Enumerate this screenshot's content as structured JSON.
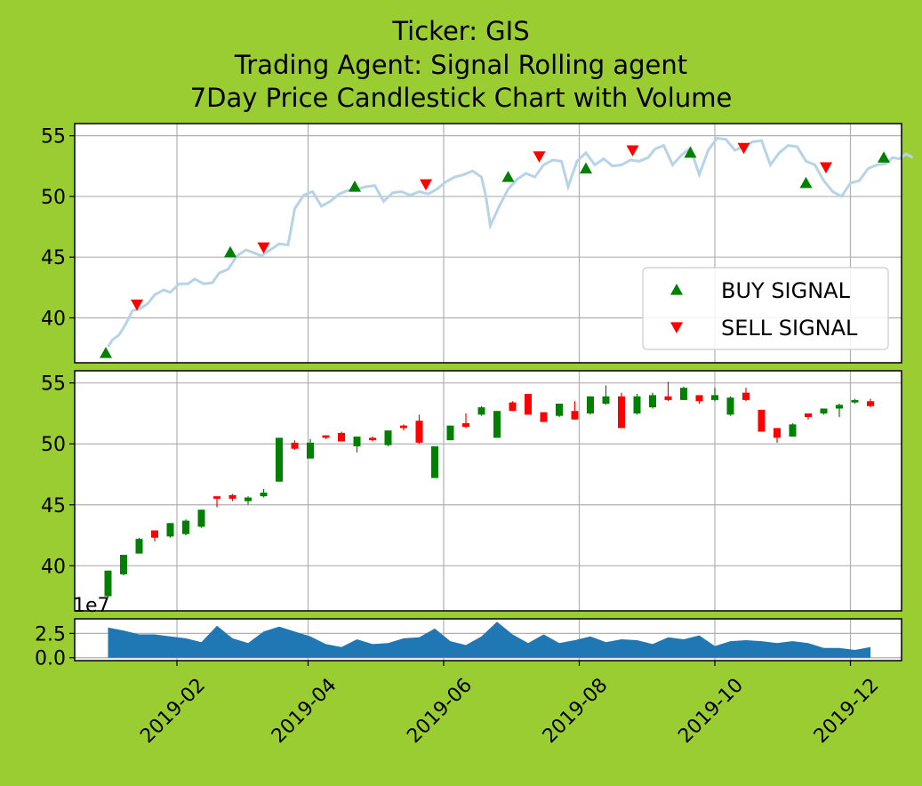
{
  "title": {
    "line1": "Ticker: GIS",
    "line2": "Trading Agent: Signal Rolling agent",
    "line3": "7Day Price Candlestick Chart with Volume"
  },
  "colors": {
    "background": "#9acd32",
    "price_line": "#b7d3e8",
    "buy": "#008000",
    "sell": "#ff0000",
    "candle_up": "#008000",
    "candle_down": "#ff0000",
    "volume": "#1f77b4",
    "grid": "#b0b0b0"
  },
  "chart_data": [
    {
      "type": "line",
      "panel": "price",
      "ylim": [
        36.3,
        56
      ],
      "yticks": [
        40,
        45,
        50,
        55
      ],
      "xlim": [
        "2018-12-17",
        "2019-12-24"
      ],
      "grid": true,
      "legend": {
        "placement": "lower-right",
        "entries": [
          {
            "label": "BUY SIGNAL",
            "marker": "triangle-up",
            "color": "#008000"
          },
          {
            "label": "SELL SIGNAL",
            "marker": "triangle-down",
            "color": "#ff0000"
          }
        ]
      },
      "price_series": [
        [
          "2019-01-01",
          37.6
        ],
        [
          "2019-01-03",
          38.2
        ],
        [
          "2019-01-06",
          38.6
        ],
        [
          "2019-01-09",
          39.5
        ],
        [
          "2019-01-12",
          40.6
        ],
        [
          "2019-01-15",
          40.7
        ],
        [
          "2019-01-19",
          41.2
        ],
        [
          "2019-01-22",
          41.9
        ],
        [
          "2019-01-26",
          42.3
        ],
        [
          "2019-01-29",
          42.1
        ],
        [
          "2019-02-02",
          42.8
        ],
        [
          "2019-02-06",
          42.8
        ],
        [
          "2019-02-09",
          43.2
        ],
        [
          "2019-02-13",
          42.8
        ],
        [
          "2019-02-17",
          42.9
        ],
        [
          "2019-02-20",
          43.7
        ],
        [
          "2019-02-24",
          44.0
        ],
        [
          "2019-02-28",
          45.1
        ],
        [
          "2019-03-04",
          45.6
        ],
        [
          "2019-03-07",
          45.4
        ],
        [
          "2019-03-11",
          45.1
        ],
        [
          "2019-03-15",
          45.6
        ],
        [
          "2019-03-19",
          46.1
        ],
        [
          "2019-03-23",
          46.0
        ],
        [
          "2019-03-26",
          49.0
        ],
        [
          "2019-03-30",
          50.1
        ],
        [
          "2019-04-03",
          50.4
        ],
        [
          "2019-04-07",
          49.2
        ],
        [
          "2019-04-11",
          49.6
        ],
        [
          "2019-04-15",
          50.2
        ],
        [
          "2019-04-19",
          50.5
        ],
        [
          "2019-04-23",
          50.6
        ],
        [
          "2019-04-27",
          50.8
        ],
        [
          "2019-05-01",
          50.9
        ],
        [
          "2019-05-05",
          49.6
        ],
        [
          "2019-05-09",
          50.3
        ],
        [
          "2019-05-13",
          50.4
        ],
        [
          "2019-05-17",
          50.1
        ],
        [
          "2019-05-21",
          50.4
        ],
        [
          "2019-05-25",
          50.2
        ],
        [
          "2019-05-29",
          50.6
        ],
        [
          "2019-06-02",
          51.2
        ],
        [
          "2019-06-06",
          51.6
        ],
        [
          "2019-06-10",
          51.8
        ],
        [
          "2019-06-14",
          52.1
        ],
        [
          "2019-06-18",
          51.6
        ],
        [
          "2019-06-20",
          50.0
        ],
        [
          "2019-06-22",
          47.6
        ],
        [
          "2019-06-26",
          49.2
        ],
        [
          "2019-06-30",
          50.6
        ],
        [
          "2019-07-04",
          51.4
        ],
        [
          "2019-07-08",
          51.9
        ],
        [
          "2019-07-12",
          51.6
        ],
        [
          "2019-07-16",
          52.6
        ],
        [
          "2019-07-20",
          53.0
        ],
        [
          "2019-07-24",
          52.9
        ],
        [
          "2019-07-27",
          50.8
        ],
        [
          "2019-07-31",
          52.9
        ],
        [
          "2019-08-04",
          53.6
        ],
        [
          "2019-08-08",
          52.6
        ],
        [
          "2019-08-12",
          53.1
        ],
        [
          "2019-08-16",
          52.5
        ],
        [
          "2019-08-20",
          52.6
        ],
        [
          "2019-08-24",
          53.0
        ],
        [
          "2019-08-28",
          52.9
        ],
        [
          "2019-09-01",
          53.2
        ],
        [
          "2019-09-04",
          53.9
        ],
        [
          "2019-09-08",
          54.2
        ],
        [
          "2019-09-12",
          52.6
        ],
        [
          "2019-09-16",
          53.4
        ],
        [
          "2019-09-20",
          54.0
        ],
        [
          "2019-09-24",
          51.8
        ],
        [
          "2019-09-28",
          53.8
        ],
        [
          "2019-10-02",
          54.8
        ],
        [
          "2019-10-06",
          54.7
        ],
        [
          "2019-10-10",
          53.8
        ],
        [
          "2019-10-14",
          54.1
        ],
        [
          "2019-10-18",
          54.5
        ],
        [
          "2019-10-22",
          54.6
        ],
        [
          "2019-10-26",
          52.6
        ],
        [
          "2019-10-30",
          53.6
        ],
        [
          "2019-11-03",
          54.2
        ],
        [
          "2019-11-07",
          54.1
        ],
        [
          "2019-11-11",
          52.9
        ],
        [
          "2019-11-15",
          52.6
        ],
        [
          "2019-11-19",
          51.3
        ],
        [
          "2019-11-23",
          50.4
        ],
        [
          "2019-11-27",
          50.0
        ],
        [
          "2019-12-01",
          51.1
        ],
        [
          "2019-12-05",
          51.3
        ],
        [
          "2019-12-09",
          52.3
        ],
        [
          "2019-12-13",
          52.6
        ],
        [
          "2019-12-17",
          52.7
        ],
        [
          "2019-12-20",
          53.2
        ],
        [
          "2019-12-23",
          53.1
        ],
        [
          "2019-12-26",
          53.5
        ],
        [
          "2019-12-29",
          53.2
        ]
      ],
      "buy_signals": [
        [
          "2018-12-31",
          37.1
        ],
        [
          "2019-02-25",
          45.4
        ],
        [
          "2019-04-22",
          50.8
        ],
        [
          "2019-06-30",
          51.6
        ],
        [
          "2019-08-04",
          52.3
        ],
        [
          "2019-09-20",
          53.6
        ],
        [
          "2019-11-11",
          51.1
        ],
        [
          "2019-12-16",
          53.2
        ]
      ],
      "sell_signals": [
        [
          "2019-01-14",
          41.1
        ],
        [
          "2019-03-12",
          45.8
        ],
        [
          "2019-05-24",
          51.0
        ],
        [
          "2019-07-14",
          53.3
        ],
        [
          "2019-08-25",
          53.8
        ],
        [
          "2019-10-14",
          54.0
        ],
        [
          "2019-11-20",
          52.4
        ]
      ]
    },
    {
      "type": "candlestick",
      "panel": "candles",
      "ylim": [
        36.3,
        56
      ],
      "yticks": [
        40,
        45,
        50,
        55
      ],
      "grid": true,
      "candles": [
        [
          "2019-01-01",
          37.5,
          39.6,
          37.4,
          39.6
        ],
        [
          "2019-01-08",
          39.3,
          40.9,
          39.2,
          40.9
        ],
        [
          "2019-01-15",
          41.0,
          42.2,
          41.0,
          42.3
        ],
        [
          "2019-01-22",
          42.9,
          42.3,
          42.0,
          42.9
        ],
        [
          "2019-01-29",
          42.4,
          43.5,
          42.3,
          43.5
        ],
        [
          "2019-02-05",
          42.6,
          43.7,
          42.5,
          43.8
        ],
        [
          "2019-02-12",
          43.2,
          44.6,
          43.1,
          44.6
        ],
        [
          "2019-02-19",
          45.7,
          45.5,
          44.8,
          45.7
        ],
        [
          "2019-02-26",
          45.8,
          45.5,
          45.3,
          45.9
        ],
        [
          "2019-03-05",
          45.3,
          45.6,
          45.0,
          45.7
        ],
        [
          "2019-03-12",
          45.7,
          46.0,
          45.6,
          46.3
        ],
        [
          "2019-03-19",
          46.9,
          50.5,
          46.9,
          50.5
        ],
        [
          "2019-03-26",
          50.1,
          49.6,
          49.5,
          50.3
        ],
        [
          "2019-04-02",
          48.8,
          50.1,
          48.8,
          50.4
        ],
        [
          "2019-04-09",
          50.7,
          50.5,
          50.4,
          50.7
        ],
        [
          "2019-04-16",
          50.9,
          50.2,
          50.2,
          51.0
        ],
        [
          "2019-04-23",
          49.8,
          50.6,
          49.3,
          50.6
        ],
        [
          "2019-04-30",
          50.5,
          50.3,
          50.2,
          50.6
        ],
        [
          "2019-05-07",
          49.9,
          51.1,
          49.8,
          51.1
        ],
        [
          "2019-05-14",
          51.5,
          51.3,
          51.1,
          51.6
        ],
        [
          "2019-05-21",
          51.9,
          50.1,
          50.0,
          52.4
        ],
        [
          "2019-05-28",
          47.2,
          49.8,
          47.2,
          49.8
        ],
        [
          "2019-06-04",
          50.3,
          51.5,
          50.3,
          51.5
        ],
        [
          "2019-06-11",
          51.7,
          51.4,
          51.3,
          52.5
        ],
        [
          "2019-06-18",
          52.4,
          53.0,
          52.3,
          53.1
        ],
        [
          "2019-06-25",
          50.5,
          52.7,
          50.5,
          52.7
        ],
        [
          "2019-07-02",
          53.4,
          52.7,
          52.7,
          53.5
        ],
        [
          "2019-07-09",
          54.1,
          52.4,
          52.4,
          54.1
        ],
        [
          "2019-07-16",
          52.6,
          51.8,
          51.8,
          52.6
        ],
        [
          "2019-07-23",
          52.3,
          53.3,
          52.2,
          53.3
        ],
        [
          "2019-07-30",
          52.7,
          52.0,
          52.0,
          53.5
        ],
        [
          "2019-08-06",
          52.5,
          53.9,
          52.4,
          53.9
        ],
        [
          "2019-08-13",
          53.3,
          53.9,
          53.2,
          54.8
        ],
        [
          "2019-08-20",
          53.9,
          51.3,
          51.3,
          54.2
        ],
        [
          "2019-08-27",
          52.5,
          53.9,
          52.4,
          54.1
        ],
        [
          "2019-09-03",
          53.0,
          54.0,
          52.9,
          54.2
        ],
        [
          "2019-09-10",
          53.9,
          53.6,
          53.5,
          55.1
        ],
        [
          "2019-09-17",
          53.6,
          54.6,
          53.6,
          54.7
        ],
        [
          "2019-09-24",
          54.0,
          53.5,
          53.3,
          54.0
        ],
        [
          "2019-10-01",
          53.6,
          54.0,
          53.5,
          54.6
        ],
        [
          "2019-10-08",
          52.4,
          53.8,
          52.3,
          53.9
        ],
        [
          "2019-10-15",
          54.2,
          53.6,
          53.5,
          54.6
        ],
        [
          "2019-10-22",
          52.8,
          51.0,
          51.0,
          52.8
        ],
        [
          "2019-10-29",
          51.3,
          50.5,
          50.1,
          51.3
        ],
        [
          "2019-11-05",
          50.6,
          51.6,
          50.6,
          51.7
        ],
        [
          "2019-11-12",
          52.5,
          52.2,
          52.0,
          52.5
        ],
        [
          "2019-11-19",
          52.5,
          52.9,
          52.4,
          52.9
        ],
        [
          "2019-11-26",
          52.9,
          53.2,
          52.2,
          53.3
        ],
        [
          "2019-12-03",
          53.4,
          53.6,
          53.3,
          53.7
        ],
        [
          "2019-12-10",
          53.5,
          53.1,
          53.0,
          53.7
        ]
      ]
    },
    {
      "type": "area",
      "panel": "volume",
      "ylim": [
        -0.3,
        4.0
      ],
      "yticks": [
        0.0,
        2.5
      ],
      "scale_label": "1e7",
      "grid": true,
      "x": [
        "2019-01-01",
        "2019-01-08",
        "2019-01-15",
        "2019-01-22",
        "2019-01-29",
        "2019-02-05",
        "2019-02-12",
        "2019-02-19",
        "2019-02-26",
        "2019-03-05",
        "2019-03-12",
        "2019-03-19",
        "2019-03-26",
        "2019-04-02",
        "2019-04-09",
        "2019-04-16",
        "2019-04-23",
        "2019-04-30",
        "2019-05-07",
        "2019-05-14",
        "2019-05-21",
        "2019-05-28",
        "2019-06-04",
        "2019-06-11",
        "2019-06-18",
        "2019-06-25",
        "2019-07-02",
        "2019-07-09",
        "2019-07-16",
        "2019-07-23",
        "2019-07-30",
        "2019-08-06",
        "2019-08-13",
        "2019-08-20",
        "2019-08-27",
        "2019-09-03",
        "2019-09-10",
        "2019-09-17",
        "2019-09-24",
        "2019-10-01",
        "2019-10-08",
        "2019-10-15",
        "2019-10-22",
        "2019-10-29",
        "2019-11-05",
        "2019-11-12",
        "2019-11-19",
        "2019-11-26",
        "2019-12-03",
        "2019-12-10"
      ],
      "values": [
        3.1,
        2.8,
        2.4,
        2.4,
        2.2,
        2.0,
        1.6,
        3.3,
        2.0,
        1.5,
        2.7,
        3.2,
        2.7,
        2.2,
        1.4,
        1.1,
        1.9,
        1.4,
        1.5,
        2.0,
        2.1,
        3.0,
        1.7,
        1.3,
        2.2,
        3.7,
        2.4,
        1.5,
        2.4,
        1.5,
        1.8,
        2.2,
        1.6,
        1.9,
        1.8,
        1.4,
        2.1,
        1.9,
        2.3,
        1.2,
        1.7,
        1.8,
        1.7,
        1.5,
        1.7,
        1.5,
        1.0,
        1.0,
        0.8,
        1.1
      ]
    }
  ],
  "x_axis": {
    "tick_labels": [
      "2019-02",
      "2019-04",
      "2019-06",
      "2019-08",
      "2019-10",
      "2019-12"
    ],
    "ticks": [
      "2019-02-01",
      "2019-04-01",
      "2019-06-01",
      "2019-08-01",
      "2019-10-01",
      "2019-12-01"
    ]
  }
}
